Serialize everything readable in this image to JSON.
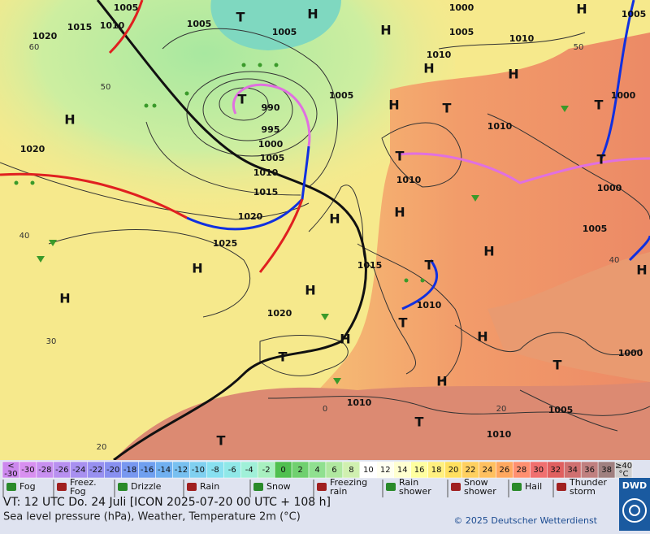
{
  "map": {
    "pressure_labels": [
      "1005",
      "1015",
      "1010",
      "1020",
      "1005",
      "1005",
      "1000",
      "1005",
      "1010",
      "1010",
      "1005",
      "1000",
      "1005",
      "990",
      "995",
      "1000",
      "1005",
      "1010",
      "1015",
      "1020",
      "1025",
      "1020",
      "1010",
      "1010",
      "1000",
      "1005",
      "1015",
      "1010",
      "1020",
      "1000",
      "1010",
      "1005",
      "1010"
    ],
    "highs": [
      "H",
      "H",
      "H",
      "H",
      "H",
      "H",
      "H",
      "H",
      "H",
      "H",
      "H",
      "H",
      "H",
      "H",
      "H",
      "H",
      "H"
    ],
    "lows": [
      "T",
      "T",
      "T",
      "T",
      "T",
      "T",
      "T",
      "T",
      "T",
      "T",
      "T",
      "T"
    ],
    "temperature_labels": [
      "60",
      "50",
      "40",
      "30",
      "20",
      "0",
      "20",
      "50",
      "40"
    ]
  },
  "legend": {
    "scale": [
      {
        "label": [
          "<",
          "-30"
        ],
        "color": "#cc88ee"
      },
      {
        "label": [
          "-30"
        ],
        "color": "#d890f0"
      },
      {
        "label": [
          "-28"
        ],
        "color": "#c890f0"
      },
      {
        "label": [
          "-26"
        ],
        "color": "#b890f0"
      },
      {
        "label": [
          "-24"
        ],
        "color": "#a890f0"
      },
      {
        "label": [
          "-22"
        ],
        "color": "#9890f0"
      },
      {
        "label": [
          "-20"
        ],
        "color": "#8890f0"
      },
      {
        "label": [
          "-18"
        ],
        "color": "#7898f0"
      },
      {
        "label": [
          "-16"
        ],
        "color": "#70a0f0"
      },
      {
        "label": [
          "-14"
        ],
        "color": "#70b0f0"
      },
      {
        "label": [
          "-12"
        ],
        "color": "#78c0f0"
      },
      {
        "label": [
          "-10"
        ],
        "color": "#80d0f0"
      },
      {
        "label": [
          "-8"
        ],
        "color": "#88e0f0"
      },
      {
        "label": [
          "-6"
        ],
        "color": "#90e8e8"
      },
      {
        "label": [
          "-4"
        ],
        "color": "#a0f0d8"
      },
      {
        "label": [
          "-2"
        ],
        "color": "#a8f0c0"
      },
      {
        "label": [
          "0"
        ],
        "color": "#50c050"
      },
      {
        "label": [
          "2"
        ],
        "color": "#70d070"
      },
      {
        "label": [
          "4"
        ],
        "color": "#90e090"
      },
      {
        "label": [
          "6"
        ],
        "color": "#b0e8a0"
      },
      {
        "label": [
          "8"
        ],
        "color": "#d0f0b0"
      },
      {
        "label": [
          "10"
        ],
        "color": "#ffffff"
      },
      {
        "label": [
          "12"
        ],
        "color": "#fffff0"
      },
      {
        "label": [
          "14"
        ],
        "color": "#ffffd0"
      },
      {
        "label": [
          "16"
        ],
        "color": "#ffffa0"
      },
      {
        "label": [
          "18"
        ],
        "color": "#fff080"
      },
      {
        "label": [
          "20"
        ],
        "color": "#ffe060"
      },
      {
        "label": [
          "22"
        ],
        "color": "#ffd060"
      },
      {
        "label": [
          "24"
        ],
        "color": "#ffc060"
      },
      {
        "label": [
          "26"
        ],
        "color": "#ffa860"
      },
      {
        "label": [
          "28"
        ],
        "color": "#ff9070"
      },
      {
        "label": [
          "30"
        ],
        "color": "#f07070"
      },
      {
        "label": [
          "32"
        ],
        "color": "#e06060"
      },
      {
        "label": [
          "34"
        ],
        "color": "#d07070"
      },
      {
        "label": [
          "36"
        ],
        "color": "#c08080"
      },
      {
        "label": [
          "38"
        ],
        "color": "#a08080"
      },
      {
        "label": [
          "≥40",
          "°C"
        ],
        "color": "#d0d0d0"
      }
    ],
    "weather": [
      [
        "Fog"
      ],
      [
        "Freez.",
        "Fog"
      ],
      [
        "Drizzle"
      ],
      [
        "Rain"
      ],
      [
        "Snow"
      ],
      [
        "Freezing",
        "rain"
      ],
      [
        "Rain",
        "shower"
      ],
      [
        "Snow",
        "shower"
      ],
      [
        "Hail"
      ],
      [
        "Thunder",
        "storm"
      ]
    ]
  },
  "footer": {
    "valid_time": "VT: 12 UTC Do.  24 Juli [ICON 2025-07-20  00 UTC + 108 h]",
    "description": "Sea level pressure (hPa), Weather, Temperature 2m (°C)",
    "copyright": "© 2025 Deutscher Wetterdienst",
    "logo": "DWD"
  }
}
